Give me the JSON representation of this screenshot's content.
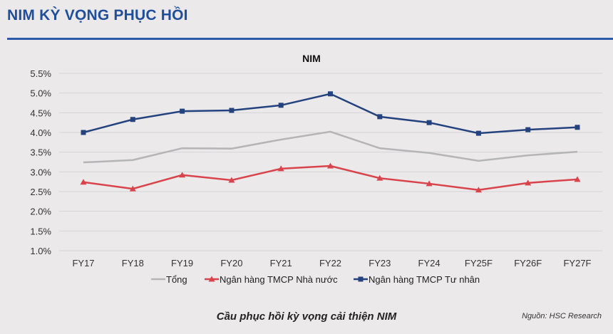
{
  "header": {
    "title": "NIM KỲ VỌNG PHỤC HỒI"
  },
  "footer": {
    "caption": "Cầu phục hồi kỳ vọng cải thiện NIM",
    "source": "Nguồn: HSC Research"
  },
  "chart_data": {
    "type": "line",
    "title": "NIM",
    "xlabel": "",
    "ylabel": "",
    "categories": [
      "FY17",
      "FY18",
      "FY19",
      "FY20",
      "FY21",
      "FY22",
      "FY23",
      "FY24",
      "FY25F",
      "FY26F",
      "FY27F"
    ],
    "yticks": [
      "1.0%",
      "1.5%",
      "2.0%",
      "2.5%",
      "3.0%",
      "3.5%",
      "4.0%",
      "4.5%",
      "5.0%",
      "5.5%"
    ],
    "ylim": [
      1.0,
      5.5
    ],
    "grid": true,
    "legend_position": "bottom",
    "series": [
      {
        "name": "Tổng",
        "color": "#b5b5b7",
        "marker": "none",
        "values": [
          3.24,
          3.3,
          3.6,
          3.59,
          3.82,
          4.02,
          3.6,
          3.48,
          3.28,
          3.42,
          3.51
        ]
      },
      {
        "name": "Ngân hàng TMCP Nhà nước",
        "color": "#d9434b",
        "marker": "triangle",
        "values": [
          2.74,
          2.57,
          2.92,
          2.79,
          3.08,
          3.15,
          2.84,
          2.7,
          2.54,
          2.72,
          2.81
        ]
      },
      {
        "name": "Ngân hàng TMCP Tư nhân",
        "color": "#24427e",
        "marker": "square",
        "values": [
          4.0,
          4.33,
          4.54,
          4.56,
          4.69,
          4.98,
          4.4,
          4.25,
          3.98,
          4.07,
          4.13
        ]
      }
    ]
  }
}
